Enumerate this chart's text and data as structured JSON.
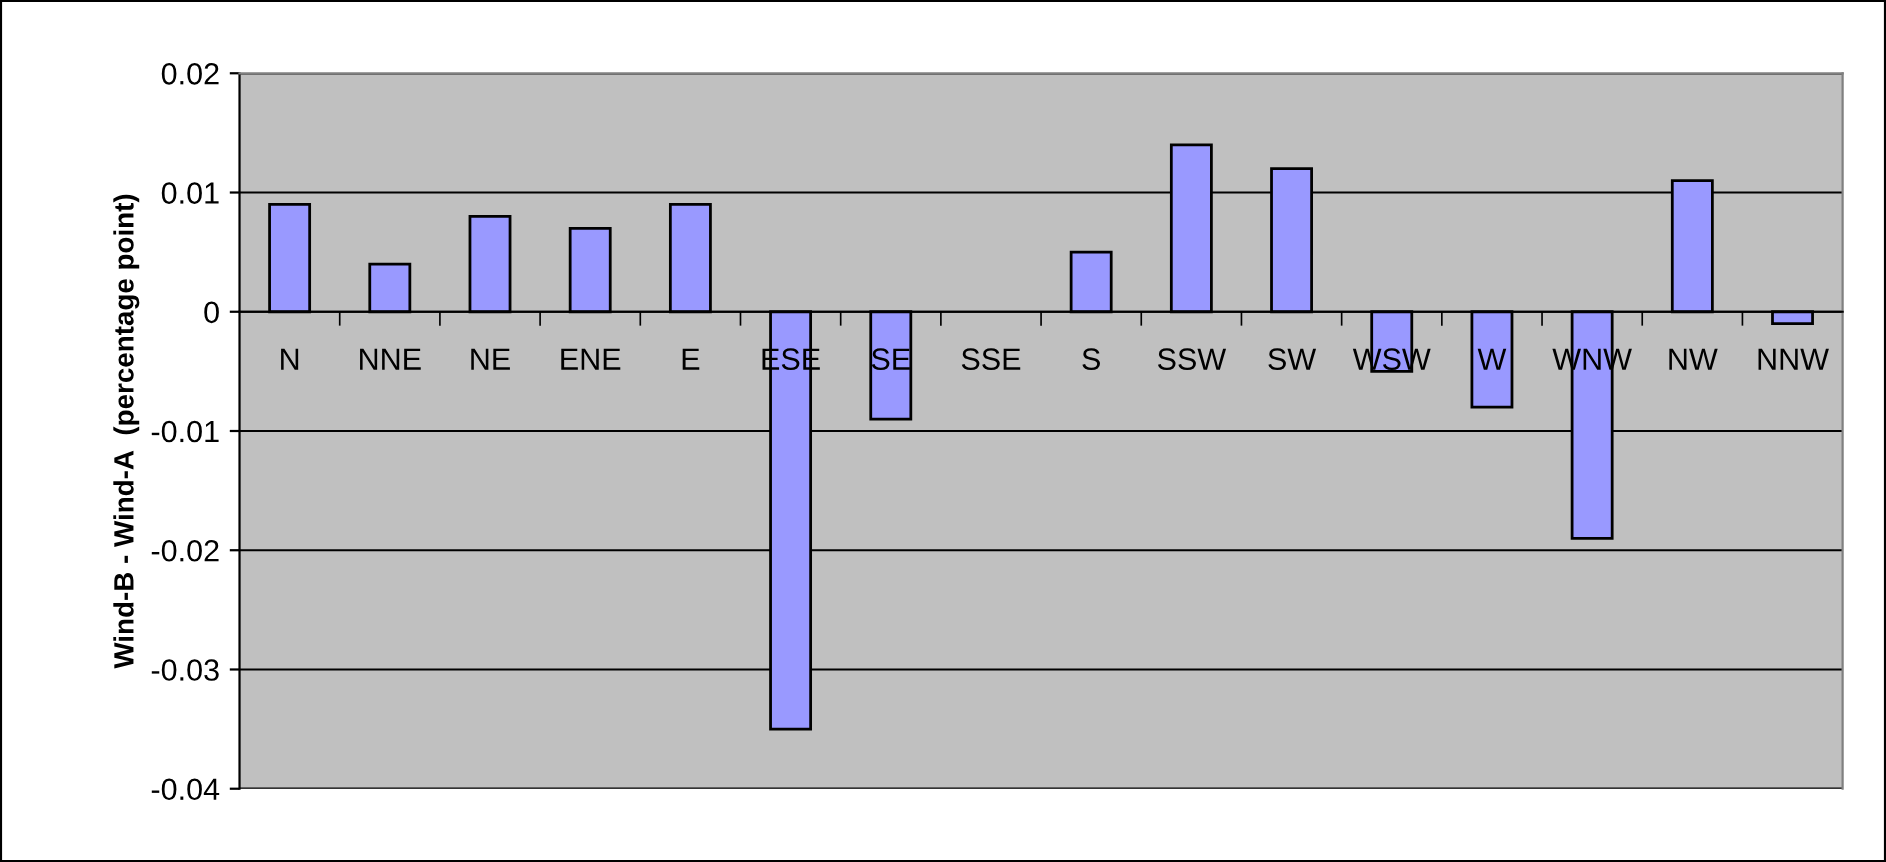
{
  "chart_data": {
    "type": "bar",
    "ylabel": "Wind-B - Wind-A  (percentage point)",
    "categories": [
      "N",
      "NNE",
      "NE",
      "ENE",
      "E",
      "ESE",
      "SE",
      "SSE",
      "S",
      "SSW",
      "SW",
      "WSW",
      "W",
      "WNW",
      "NW",
      "NNW"
    ],
    "values": [
      0.009,
      0.004,
      0.008,
      0.007,
      0.009,
      -0.035,
      -0.009,
      0,
      0.005,
      0.014,
      0.012,
      -0.005,
      -0.008,
      -0.019,
      0.011,
      -0.001
    ],
    "color": "#9999ff",
    "ylim": [
      -0.04,
      0.02
    ],
    "yticks": [
      -0.04,
      -0.03,
      -0.02,
      -0.01,
      0,
      0.01,
      0.02
    ],
    "grid": "y",
    "legend": false
  }
}
